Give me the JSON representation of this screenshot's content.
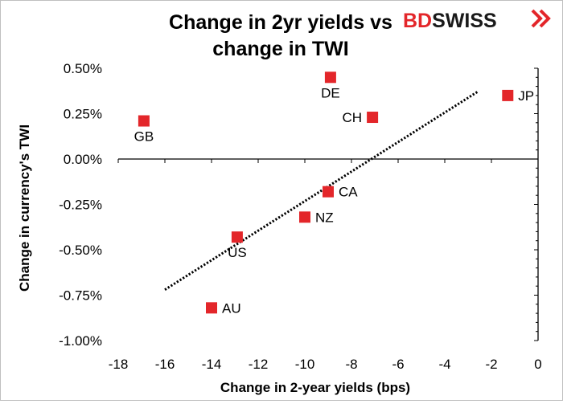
{
  "colors": {
    "marker": "#e3262a",
    "brand_red": "#e3262a",
    "brand_dark": "#1a1a1a",
    "axis": "#000000",
    "trendline": "#000000"
  },
  "brand": {
    "part1": "BD",
    "part2": "SWISS",
    "icon": "chevron-double-icon"
  },
  "chart_data": {
    "type": "scatter",
    "title": "Change in 2yr yields vs change in TWI",
    "title_lines": [
      "Change in 2yr yields vs",
      "change in TWI"
    ],
    "xlabel": "Change in 2-year yields (bps)",
    "ylabel": "Change in currency's  TWI",
    "xlim": [
      -18,
      0
    ],
    "ylim": [
      -1.0,
      0.5
    ],
    "x_ticks": [
      -18,
      -16,
      -14,
      -12,
      -10,
      -8,
      -6,
      -4,
      -2,
      0
    ],
    "x_tick_labels": [
      "-18",
      "-16",
      "-14",
      "-12",
      "-10",
      "-8",
      "-6",
      "-4",
      "-2",
      "0"
    ],
    "y_ticks": [
      0.5,
      0.25,
      0.0,
      -0.25,
      -0.5,
      -0.75,
      -1.0
    ],
    "y_tick_labels": [
      "0.50%",
      "0.25%",
      "0.00%",
      "-0.25%",
      "-0.50%",
      "-0.75%",
      "-1.00%"
    ],
    "grid": false,
    "legend": "none",
    "points": [
      {
        "label": "GB",
        "x": -16.9,
        "y": 0.21,
        "label_pos": "below"
      },
      {
        "label": "DE",
        "x": -8.9,
        "y": 0.45,
        "label_pos": "below"
      },
      {
        "label": "CH",
        "x": -7.1,
        "y": 0.23,
        "label_pos": "left"
      },
      {
        "label": "JP",
        "x": -1.3,
        "y": 0.35,
        "label_pos": "right"
      },
      {
        "label": "CA",
        "x": -9.0,
        "y": -0.18,
        "label_pos": "right"
      },
      {
        "label": "NZ",
        "x": -10.0,
        "y": -0.32,
        "label_pos": "right"
      },
      {
        "label": "US",
        "x": -12.9,
        "y": -0.43,
        "label_pos": "below"
      },
      {
        "label": "AU",
        "x": -14.0,
        "y": -0.82,
        "label_pos": "right"
      }
    ],
    "trendline": {
      "style": "dotted",
      "from": {
        "x": -16.0,
        "y": -0.72
      },
      "to": {
        "x": -2.6,
        "y": 0.37
      }
    }
  }
}
